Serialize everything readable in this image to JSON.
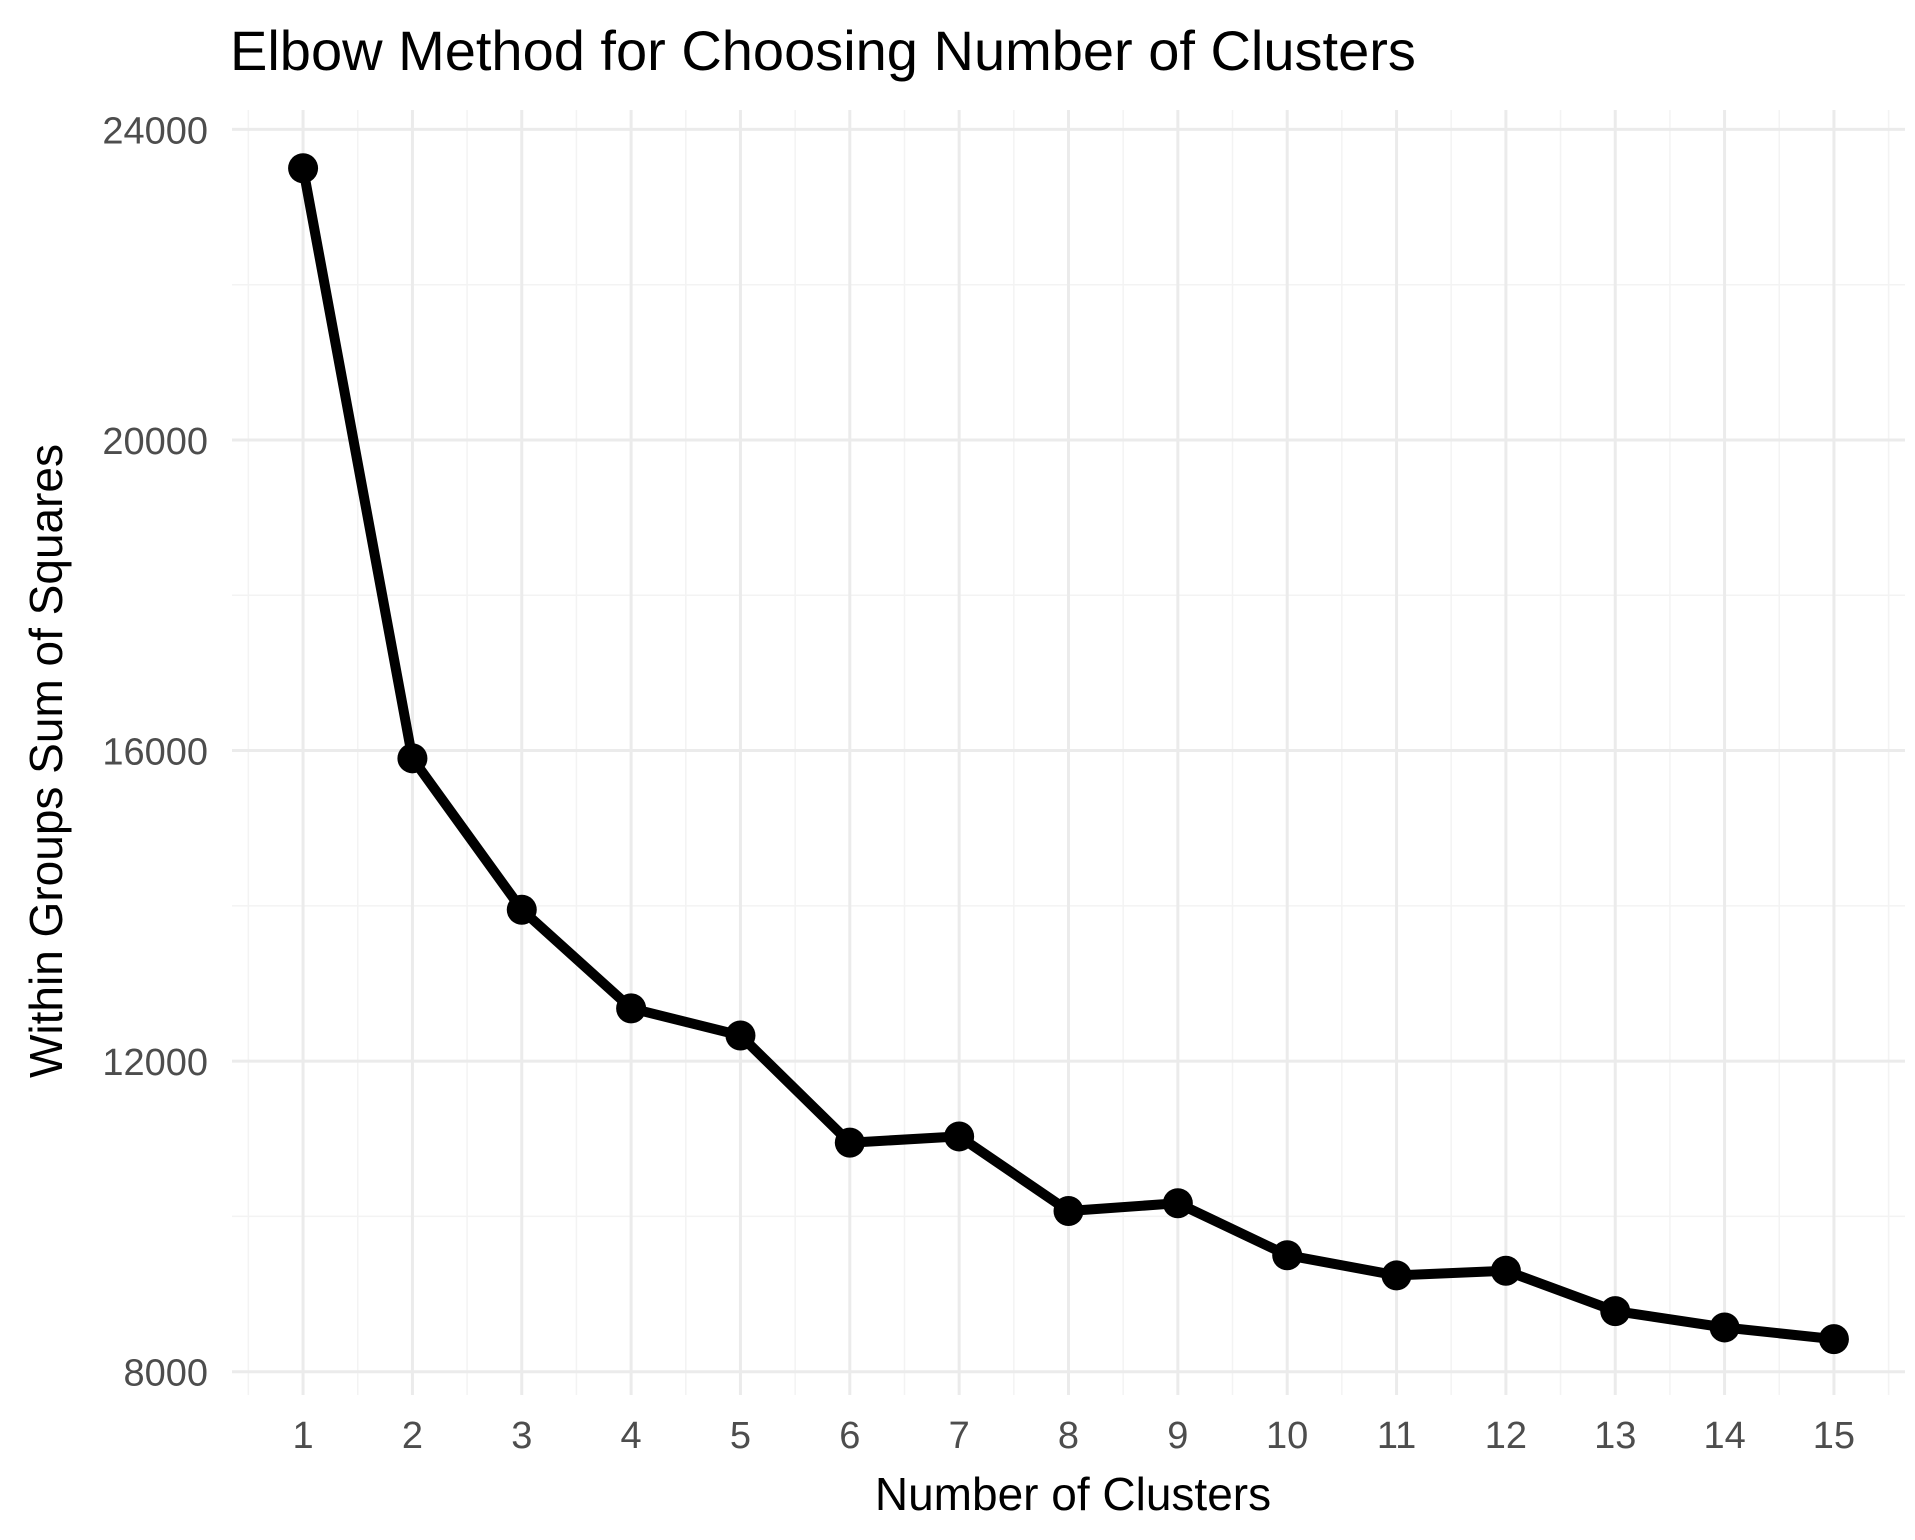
{
  "chart_data": {
    "type": "line",
    "title": "Elbow Method for Choosing Number of Clusters",
    "xlabel": "Number of Clusters",
    "ylabel": "Within Groups Sum of Squares",
    "x": [
      1,
      2,
      3,
      4,
      5,
      6,
      7,
      8,
      9,
      10,
      11,
      12,
      13,
      14,
      15
    ],
    "y": [
      23500,
      15900,
      13950,
      12680,
      12330,
      10950,
      11030,
      10070,
      10170,
      9500,
      9240,
      9300,
      8780,
      8570,
      8420
    ],
    "x_ticks": [
      "1",
      "2",
      "3",
      "4",
      "5",
      "6",
      "7",
      "8",
      "9",
      "10",
      "11",
      "12",
      "13",
      "14",
      "15"
    ],
    "y_ticks": [
      "8000",
      "12000",
      "16000",
      "20000",
      "24000"
    ],
    "y_tick_values": [
      8000,
      12000,
      16000,
      20000,
      24000
    ],
    "xlim": [
      0.35,
      15.65
    ],
    "ylim": [
      7700,
      24250
    ],
    "grid": true,
    "legend": "none",
    "colors": {
      "line": "#000000",
      "grid_major": "#ebebeb",
      "grid_minor": "#f3f3f3",
      "background": "#ffffff"
    }
  }
}
